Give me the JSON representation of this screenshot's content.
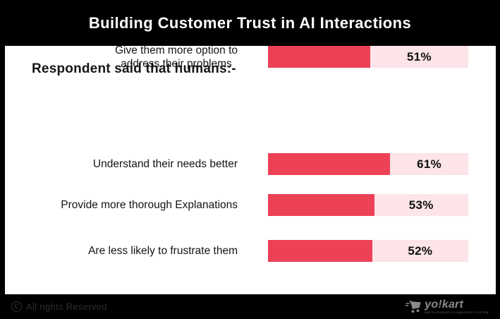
{
  "header": {
    "title": "Building Customer Trust in AI Interactions"
  },
  "main": {
    "heading": "Respondent said that humans:-"
  },
  "chart_data": {
    "type": "bar",
    "orientation": "horizontal",
    "title": "Building Customer Trust in AI Interactions",
    "subtitle": "Respondent said that humans:-",
    "categories": [
      "Understand their needs better",
      "Provide more thorough Explanations",
      "Are less likely to frustrate them",
      "Give them more option to address their problems"
    ],
    "values": [
      61,
      53,
      52,
      51
    ],
    "unit": "%",
    "xlim": [
      0,
      100
    ],
    "grid": false,
    "legend": false,
    "bar_color": "#ED4156",
    "track_color": "#FCE4E8"
  },
  "bars": [
    {
      "label": "Understand their needs better",
      "value": 61,
      "pct": "61%"
    },
    {
      "label": "Provide more thorough Explanations",
      "value": 53,
      "pct": "53%"
    },
    {
      "label": "Are less likely to frustrate them",
      "value": 52,
      "pct": "52%"
    },
    {
      "label": "Give them more option to\naddress their problems",
      "value": 51,
      "pct": "51%"
    }
  ],
  "footer": {
    "copyright_symbol": "C",
    "copyright_text": "All rights Reserved",
    "logo_name": "yo!kart",
    "logo_tagline": "MULTIVENDOR ECOMMERCE SYSTEM"
  },
  "colors": {
    "page_bg": "#000000",
    "panel_bg": "#FFFFFF",
    "title_text": "#FFFFFF",
    "bar_fill": "#ED4156",
    "bar_track": "#FCE4E8",
    "footer_text": "#2E2E2E",
    "logo_gray": "#8A8A8A"
  }
}
